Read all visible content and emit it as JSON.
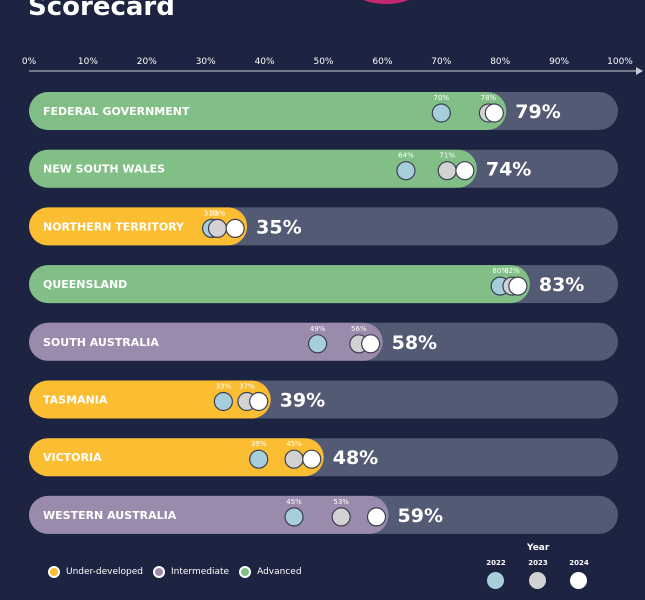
{
  "title": "Scorecard",
  "colors": {
    "background": "#1c2442",
    "track": "#535a73",
    "under_developed": "#fbbd32",
    "intermediate": "#9a8aab",
    "advanced": "#82bf86",
    "year_2022": "#a6cedb",
    "year_2023": "#d2d2d2",
    "year_2024": "#ffffff"
  },
  "legend": {
    "under_developed": "Under-developed",
    "intermediate": "Intermediate",
    "advanced": "Advanced",
    "year_title": "Year",
    "years": [
      "2022",
      "2023",
      "2024"
    ]
  },
  "chart_data": {
    "type": "bar",
    "xlim": [
      0,
      100
    ],
    "x_ticks": [
      "0%",
      "10%",
      "20%",
      "30%",
      "40%",
      "50%",
      "60%",
      "70%",
      "80%",
      "90%",
      "100%"
    ],
    "categories": [
      "FEDERAL GOVERNMENT",
      "NEW SOUTH WALES",
      "NORTHERN TERRITORY",
      "QUEENSLAND",
      "SOUTH AUSTRALIA",
      "TASMANIA",
      "VICTORIA",
      "WESTERN AUSTRALIA"
    ],
    "maturity": [
      "advanced",
      "advanced",
      "under_developed",
      "advanced",
      "intermediate",
      "under_developed",
      "under_developed",
      "intermediate"
    ],
    "series": [
      {
        "name": "2022",
        "values": [
          70,
          64,
          31,
          80,
          49,
          33,
          39,
          45
        ],
        "labels": [
          "70%",
          "64%",
          "31%",
          "80%",
          "49%",
          "33%",
          "39%",
          "45%"
        ]
      },
      {
        "name": "2023",
        "values": [
          78,
          71,
          32,
          82,
          56,
          37,
          45,
          53
        ],
        "labels": [
          "78%",
          "71%",
          "32%",
          "82%",
          "56%",
          "37%",
          "45%",
          "53%"
        ]
      },
      {
        "name": "2024",
        "values": [
          79,
          74,
          35,
          83,
          58,
          39,
          48,
          59
        ],
        "labels": [
          "79%",
          "74%",
          "35%",
          "83%",
          "58%",
          "39%",
          "48%",
          "59%"
        ]
      }
    ]
  }
}
